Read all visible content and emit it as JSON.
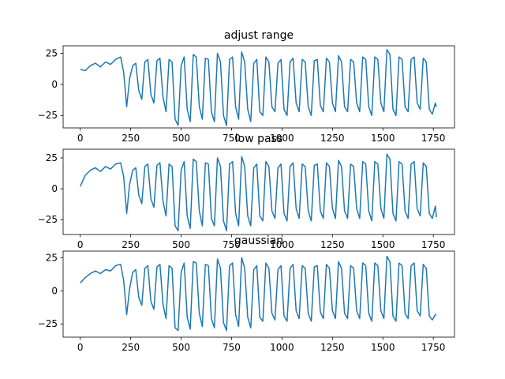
{
  "chart_data": [
    {
      "type": "line",
      "title": "adjust range",
      "xlabel": "",
      "ylabel": "",
      "xlim": [
        -85,
        1855
      ],
      "ylim": [
        -35,
        31
      ],
      "xticks": [
        0,
        250,
        500,
        750,
        1000,
        1250,
        1500,
        1750
      ],
      "yticks": [
        -25,
        0,
        25
      ],
      "grid": false,
      "color": "#1f77b4",
      "x": [
        0,
        25,
        50,
        75,
        100,
        125,
        150,
        175,
        200,
        215,
        230,
        245,
        260,
        275,
        290,
        305,
        320,
        335,
        350,
        365,
        380,
        395,
        410,
        425,
        440,
        455,
        470,
        485,
        500,
        515,
        530,
        545,
        560,
        575,
        590,
        605,
        620,
        635,
        650,
        665,
        680,
        695,
        710,
        725,
        740,
        755,
        770,
        785,
        800,
        815,
        830,
        845,
        860,
        875,
        890,
        905,
        920,
        935,
        950,
        965,
        980,
        995,
        1010,
        1025,
        1040,
        1055,
        1070,
        1085,
        1100,
        1115,
        1130,
        1145,
        1160,
        1175,
        1190,
        1205,
        1220,
        1235,
        1250,
        1265,
        1280,
        1295,
        1310,
        1325,
        1340,
        1355,
        1370,
        1385,
        1400,
        1415,
        1430,
        1445,
        1460,
        1475,
        1490,
        1505,
        1520,
        1535,
        1550,
        1565,
        1580,
        1595,
        1610,
        1625,
        1640,
        1655,
        1670,
        1685,
        1700,
        1715,
        1730,
        1745,
        1760,
        1765
      ],
      "y": [
        12,
        11,
        15,
        17,
        14,
        18,
        16,
        20,
        22,
        10,
        -18,
        5,
        15,
        17,
        -5,
        -12,
        18,
        20,
        -8,
        -15,
        19,
        21,
        -10,
        -22,
        20,
        18,
        -28,
        -33,
        15,
        22,
        -20,
        -30,
        24,
        22,
        -18,
        -28,
        21,
        20,
        -22,
        -30,
        25,
        18,
        -25,
        -33,
        20,
        22,
        -18,
        -28,
        26,
        18,
        -20,
        -30,
        17,
        20,
        -22,
        -25,
        22,
        18,
        -18,
        -22,
        17,
        20,
        -20,
        -25,
        18,
        21,
        -15,
        -22,
        20,
        18,
        -18,
        -25,
        19,
        20,
        -17,
        -22,
        21,
        18,
        -15,
        -22,
        23,
        18,
        -18,
        -22,
        20,
        18,
        -15,
        -22,
        22,
        20,
        -18,
        -25,
        22,
        20,
        -15,
        -22,
        28,
        24,
        -20,
        -25,
        22,
        20,
        -18,
        -22,
        20,
        22,
        -15,
        -20,
        21,
        18,
        -20,
        -24,
        -15,
        -18
      ]
    },
    {
      "type": "line",
      "title": "low pass",
      "xlabel": "",
      "ylabel": "",
      "xlim": [
        -85,
        1855
      ],
      "ylim": [
        -37,
        32
      ],
      "xticks": [
        0,
        250,
        500,
        750,
        1000,
        1250,
        1500,
        1750
      ],
      "yticks": [
        -25,
        0,
        25
      ],
      "grid": false,
      "color": "#1f77b4",
      "x": [
        0,
        25,
        50,
        75,
        100,
        125,
        150,
        175,
        200,
        215,
        230,
        245,
        260,
        275,
        290,
        305,
        320,
        335,
        350,
        365,
        380,
        395,
        410,
        425,
        440,
        455,
        470,
        485,
        500,
        515,
        530,
        545,
        560,
        575,
        590,
        605,
        620,
        635,
        650,
        665,
        680,
        695,
        710,
        725,
        740,
        755,
        770,
        785,
        800,
        815,
        830,
        845,
        860,
        875,
        890,
        905,
        920,
        935,
        950,
        965,
        980,
        995,
        1010,
        1025,
        1040,
        1055,
        1070,
        1085,
        1100,
        1115,
        1130,
        1145,
        1160,
        1175,
        1190,
        1205,
        1220,
        1235,
        1250,
        1265,
        1280,
        1295,
        1310,
        1325,
        1340,
        1355,
        1370,
        1385,
        1400,
        1415,
        1430,
        1445,
        1460,
        1475,
        1490,
        1505,
        1520,
        1535,
        1550,
        1565,
        1580,
        1595,
        1610,
        1625,
        1640,
        1655,
        1670,
        1685,
        1700,
        1715,
        1730,
        1745,
        1760,
        1765
      ],
      "y": [
        2,
        11,
        15,
        17,
        14,
        18,
        16,
        20,
        21,
        10,
        -20,
        4,
        15,
        17,
        -5,
        -12,
        18,
        20,
        -8,
        -15,
        19,
        21,
        -10,
        -22,
        20,
        18,
        -30,
        -34,
        15,
        22,
        -22,
        -32,
        24,
        22,
        -18,
        -30,
        21,
        20,
        -24,
        -30,
        25,
        18,
        -26,
        -34,
        20,
        22,
        -20,
        -30,
        26,
        18,
        -22,
        -30,
        17,
        20,
        -22,
        -26,
        22,
        18,
        -18,
        -24,
        17,
        20,
        -20,
        -26,
        18,
        21,
        -16,
        -24,
        20,
        18,
        -18,
        -26,
        19,
        20,
        -18,
        -24,
        21,
        18,
        -16,
        -24,
        23,
        18,
        -18,
        -24,
        20,
        18,
        -16,
        -24,
        22,
        20,
        -18,
        -26,
        22,
        20,
        -16,
        -24,
        28,
        24,
        -20,
        -26,
        22,
        20,
        -18,
        -24,
        20,
        22,
        -16,
        -22,
        21,
        18,
        -20,
        -24,
        -14,
        -23
      ]
    },
    {
      "type": "line",
      "title": "gaussian",
      "xlabel": "",
      "ylabel": "",
      "xlim": [
        -85,
        1855
      ],
      "ylim": [
        -35,
        30
      ],
      "xticks": [
        0,
        250,
        500,
        750,
        1000,
        1250,
        1500,
        1750
      ],
      "yticks": [
        -25,
        0,
        25
      ],
      "grid": false,
      "color": "#1f77b4",
      "x": [
        0,
        25,
        50,
        75,
        100,
        125,
        150,
        175,
        200,
        215,
        230,
        245,
        260,
        275,
        290,
        305,
        320,
        335,
        350,
        365,
        380,
        395,
        410,
        425,
        440,
        455,
        470,
        485,
        500,
        515,
        530,
        545,
        560,
        575,
        590,
        605,
        620,
        635,
        650,
        665,
        680,
        695,
        710,
        725,
        740,
        755,
        770,
        785,
        800,
        815,
        830,
        845,
        860,
        875,
        890,
        905,
        920,
        935,
        950,
        965,
        980,
        995,
        1010,
        1025,
        1040,
        1055,
        1070,
        1085,
        1100,
        1115,
        1130,
        1145,
        1160,
        1175,
        1190,
        1205,
        1220,
        1235,
        1250,
        1265,
        1280,
        1295,
        1310,
        1325,
        1340,
        1355,
        1370,
        1385,
        1400,
        1415,
        1430,
        1445,
        1460,
        1475,
        1490,
        1505,
        1520,
        1535,
        1550,
        1565,
        1580,
        1595,
        1610,
        1625,
        1640,
        1655,
        1670,
        1685,
        1700,
        1715,
        1730,
        1745,
        1760,
        1765
      ],
      "y": [
        6,
        10,
        13,
        15,
        13,
        16,
        15,
        19,
        20,
        8,
        -18,
        2,
        14,
        16,
        -5,
        -11,
        17,
        19,
        -8,
        -14,
        18,
        20,
        -10,
        -21,
        19,
        17,
        -28,
        -30,
        14,
        21,
        -20,
        -29,
        22,
        21,
        -17,
        -27,
        20,
        19,
        -21,
        -28,
        24,
        17,
        -24,
        -30,
        19,
        21,
        -18,
        -27,
        25,
        17,
        -20,
        -28,
        16,
        19,
        -20,
        -23,
        21,
        17,
        -17,
        -22,
        16,
        19,
        -19,
        -23,
        17,
        20,
        -15,
        -21,
        19,
        17,
        -17,
        -23,
        18,
        19,
        -16,
        -21,
        20,
        17,
        -15,
        -21,
        22,
        17,
        -17,
        -21,
        19,
        17,
        -15,
        -21,
        21,
        19,
        -17,
        -23,
        21,
        19,
        -15,
        -21,
        26,
        22,
        -19,
        -23,
        21,
        19,
        -17,
        -21,
        19,
        21,
        -15,
        -19,
        20,
        17,
        -19,
        -22,
        -18,
        -18
      ]
    }
  ]
}
